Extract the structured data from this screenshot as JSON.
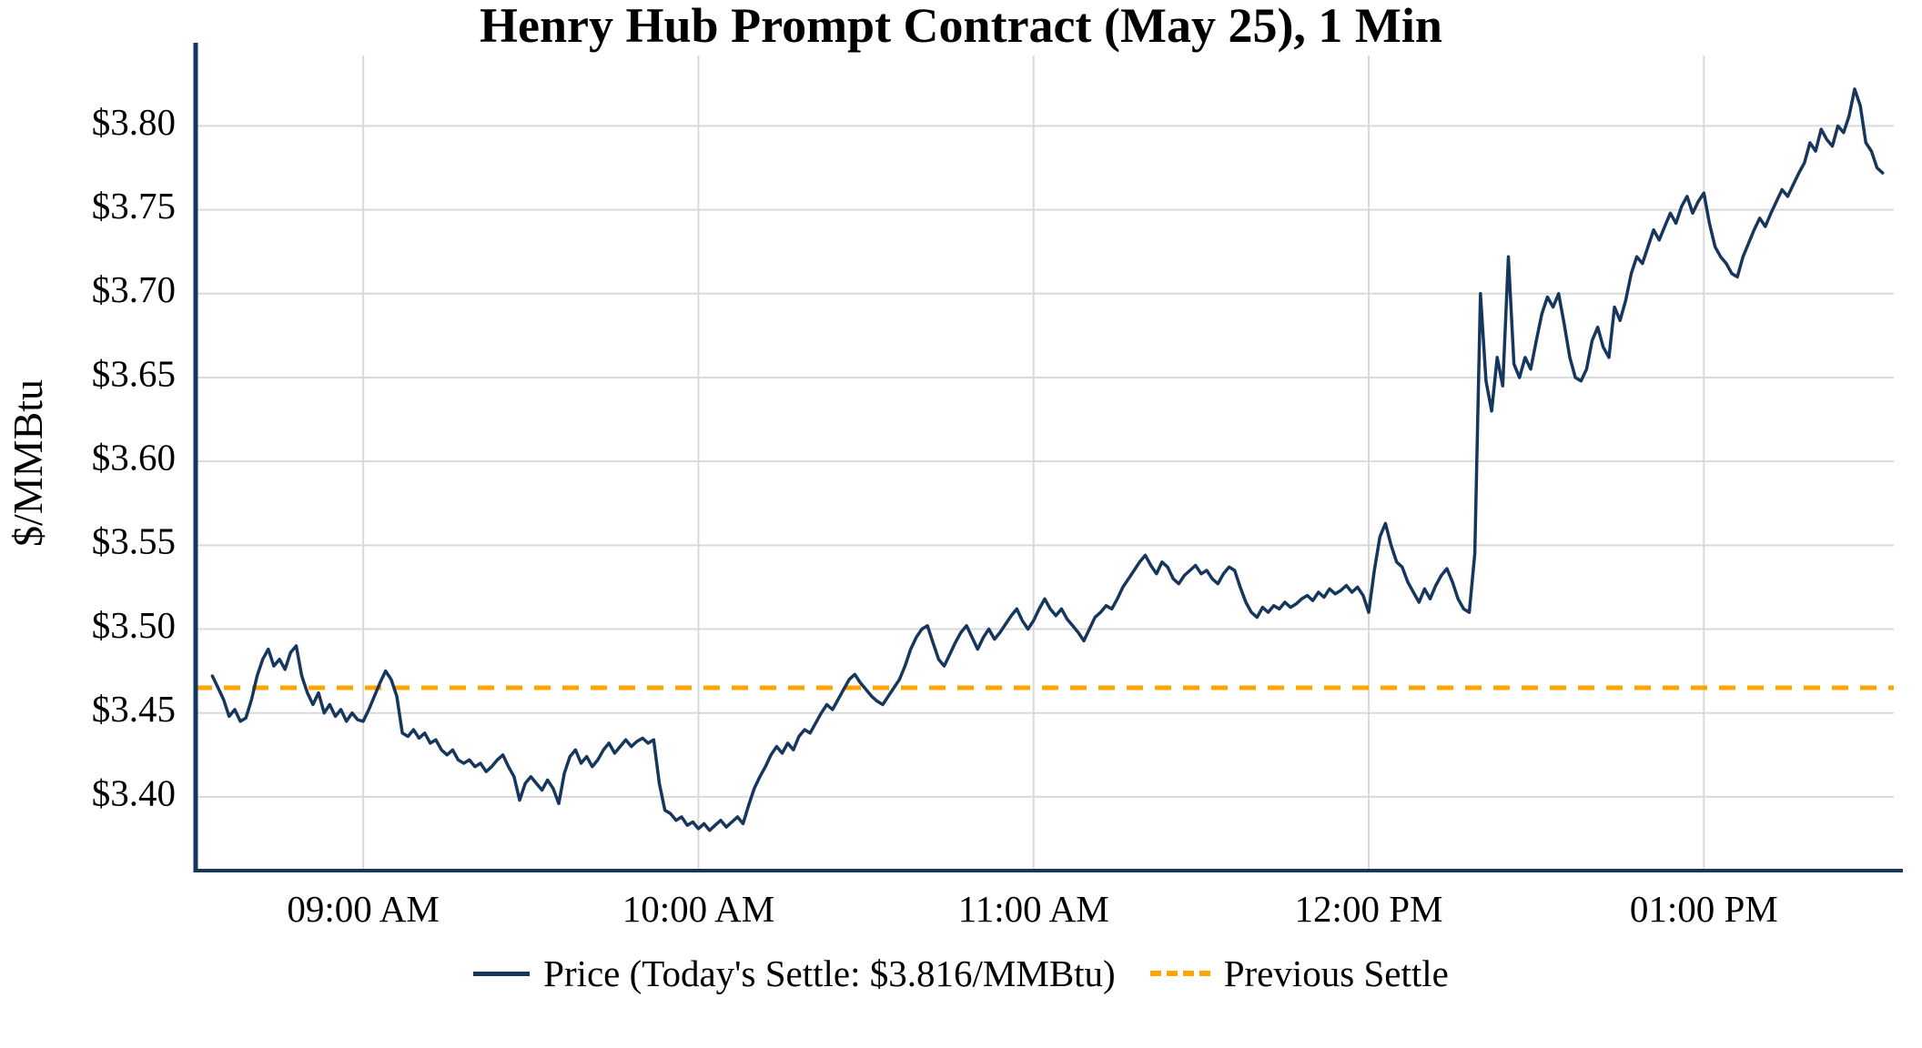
{
  "chart_data": {
    "type": "line",
    "title": "Henry Hub Prompt Contract (May 25), 1 Min",
    "xlabel": "",
    "ylabel": "$/MMBtu",
    "grid": true,
    "legend_position": "bottom",
    "todays_settle": 3.816,
    "previous_settle": 3.465,
    "colors": {
      "price_line": "#17365d",
      "settle_line": "#FFA500",
      "grid": "#d9d9d9",
      "axis": "#17365d",
      "text": "#000000"
    },
    "x_axis": {
      "unit": "minutes after 08:30 AM",
      "range": [
        0,
        304
      ],
      "ticks": [
        {
          "t": 30,
          "label": "09:00 AM"
        },
        {
          "t": 90,
          "label": "10:00 AM"
        },
        {
          "t": 150,
          "label": "11:00 AM"
        },
        {
          "t": 210,
          "label": "12:00 PM"
        },
        {
          "t": 270,
          "label": "01:00 PM"
        }
      ]
    },
    "y_axis": {
      "range": [
        3.356,
        3.842
      ],
      "tick_step": 0.05,
      "ticks": [
        {
          "v": 3.4,
          "label": "$3.40"
        },
        {
          "v": 3.45,
          "label": "$3.45"
        },
        {
          "v": 3.5,
          "label": "$3.50"
        },
        {
          "v": 3.55,
          "label": "$3.55"
        },
        {
          "v": 3.6,
          "label": "$3.60"
        },
        {
          "v": 3.65,
          "label": "$3.65"
        },
        {
          "v": 3.7,
          "label": "$3.70"
        },
        {
          "v": 3.75,
          "label": "$3.75"
        },
        {
          "v": 3.8,
          "label": "$3.80"
        }
      ]
    },
    "series": [
      {
        "name": "Price (Today's Settle: $3.816/MMBtu)",
        "style": "solid",
        "color": "#17365d",
        "t_start": 3,
        "t_step_minutes": 1,
        "prices": [
          3.472,
          3.465,
          3.458,
          3.448,
          3.452,
          3.445,
          3.447,
          3.458,
          3.472,
          3.482,
          3.488,
          3.478,
          3.482,
          3.476,
          3.486,
          3.49,
          3.472,
          3.462,
          3.455,
          3.462,
          3.45,
          3.455,
          3.448,
          3.452,
          3.445,
          3.45,
          3.446,
          3.445,
          3.452,
          3.46,
          3.468,
          3.475,
          3.47,
          3.46,
          3.438,
          3.436,
          3.44,
          3.435,
          3.438,
          3.432,
          3.434,
          3.428,
          3.425,
          3.428,
          3.422,
          3.42,
          3.422,
          3.418,
          3.42,
          3.415,
          3.418,
          3.422,
          3.425,
          3.418,
          3.412,
          3.398,
          3.408,
          3.412,
          3.408,
          3.404,
          3.41,
          3.405,
          3.396,
          3.414,
          3.424,
          3.428,
          3.42,
          3.424,
          3.418,
          3.422,
          3.428,
          3.432,
          3.426,
          3.43,
          3.434,
          3.43,
          3.433,
          3.435,
          3.432,
          3.434,
          3.408,
          3.392,
          3.39,
          3.386,
          3.388,
          3.383,
          3.385,
          3.381,
          3.384,
          3.38,
          3.383,
          3.386,
          3.382,
          3.385,
          3.388,
          3.384,
          3.395,
          3.405,
          3.412,
          3.418,
          3.425,
          3.43,
          3.426,
          3.432,
          3.428,
          3.436,
          3.44,
          3.438,
          3.444,
          3.45,
          3.455,
          3.452,
          3.458,
          3.464,
          3.47,
          3.473,
          3.468,
          3.464,
          3.46,
          3.457,
          3.455,
          3.46,
          3.465,
          3.47,
          3.478,
          3.488,
          3.495,
          3.5,
          3.502,
          3.492,
          3.482,
          3.478,
          3.485,
          3.492,
          3.498,
          3.502,
          3.495,
          3.488,
          3.495,
          3.5,
          3.494,
          3.498,
          3.503,
          3.508,
          3.512,
          3.505,
          3.5,
          3.505,
          3.512,
          3.518,
          3.512,
          3.508,
          3.512,
          3.506,
          3.502,
          3.498,
          3.493,
          3.5,
          3.507,
          3.51,
          3.514,
          3.512,
          3.518,
          3.525,
          3.53,
          3.535,
          3.54,
          3.544,
          3.538,
          3.533,
          3.54,
          3.537,
          3.53,
          3.527,
          3.532,
          3.535,
          3.538,
          3.533,
          3.535,
          3.53,
          3.527,
          3.533,
          3.537,
          3.535,
          3.525,
          3.516,
          3.51,
          3.507,
          3.513,
          3.51,
          3.514,
          3.512,
          3.516,
          3.513,
          3.515,
          3.518,
          3.52,
          3.517,
          3.522,
          3.519,
          3.524,
          3.521,
          3.523,
          3.526,
          3.522,
          3.525,
          3.52,
          3.51,
          3.535,
          3.555,
          3.563,
          3.55,
          3.54,
          3.537,
          3.528,
          3.522,
          3.516,
          3.524,
          3.518,
          3.526,
          3.532,
          3.536,
          3.528,
          3.518,
          3.512,
          3.51,
          3.545,
          3.7,
          3.648,
          3.63,
          3.662,
          3.645,
          3.722,
          3.658,
          3.65,
          3.662,
          3.655,
          3.672,
          3.688,
          3.698,
          3.692,
          3.7,
          3.682,
          3.662,
          3.65,
          3.648,
          3.655,
          3.672,
          3.68,
          3.668,
          3.662,
          3.692,
          3.684,
          3.696,
          3.712,
          3.722,
          3.718,
          3.728,
          3.738,
          3.732,
          3.74,
          3.748,
          3.742,
          3.752,
          3.758,
          3.748,
          3.755,
          3.76,
          3.742,
          3.728,
          3.722,
          3.718,
          3.712,
          3.71,
          3.722,
          3.73,
          3.738,
          3.745,
          3.74,
          3.748,
          3.755,
          3.762,
          3.758,
          3.765,
          3.772,
          3.778,
          3.79,
          3.785,
          3.798,
          3.792,
          3.788,
          3.8,
          3.796,
          3.806,
          3.822,
          3.812,
          3.79,
          3.785,
          3.775,
          3.772
        ]
      },
      {
        "name": "Previous Settle",
        "style": "dashed",
        "color": "#FFA500",
        "value": 3.465
      }
    ]
  }
}
